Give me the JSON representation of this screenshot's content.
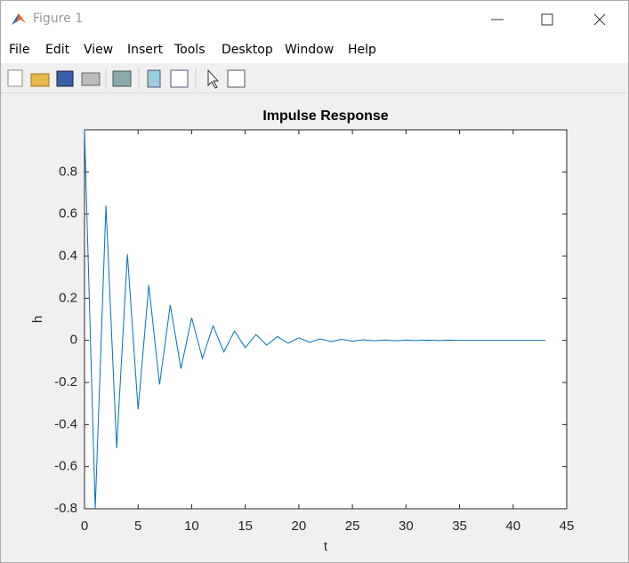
{
  "window": {
    "title": "Figure 1",
    "menu": [
      "File",
      "Edit",
      "View",
      "Insert",
      "Tools",
      "Desktop",
      "Window",
      "Help"
    ]
  },
  "chart_data": {
    "type": "line",
    "title": "Impulse Response",
    "xlabel": "t",
    "ylabel": "h",
    "x": [
      0,
      1,
      2,
      3,
      4,
      5,
      6,
      7,
      8,
      9,
      10,
      11,
      12,
      13,
      14,
      15,
      16,
      17,
      18,
      19,
      20,
      21,
      22,
      23,
      24,
      25,
      26,
      27,
      28,
      29,
      30,
      31,
      32,
      33,
      34,
      35,
      36,
      37,
      38,
      39,
      40,
      41,
      42,
      43
    ],
    "series": [
      {
        "color": "#0072bd",
        "values": [
          1,
          -0.8,
          0.64,
          -0.512,
          0.41,
          -0.328,
          0.262,
          -0.21,
          0.168,
          -0.134,
          0.107,
          -0.086,
          0.069,
          -0.055,
          0.044,
          -0.035,
          0.028,
          -0.023,
          0.018,
          -0.014,
          0.012,
          -0.009,
          0.007,
          -0.006,
          0.005,
          -0.004,
          0.003,
          -0.002,
          0.002,
          -0.002,
          0.001,
          -0.001,
          0.001,
          -0.001,
          0.001,
          0,
          0,
          0,
          0,
          0,
          0,
          0,
          0,
          0
        ]
      }
    ],
    "xlim": [
      0,
      45
    ],
    "xticks": [
      0,
      5,
      10,
      15,
      20,
      25,
      30,
      35,
      40,
      45
    ],
    "ylim": [
      -0.8,
      1
    ],
    "yticks": [
      -0.8,
      -0.6,
      -0.4,
      -0.2,
      0,
      0.2,
      0.4,
      0.6,
      0.8
    ],
    "grid": false
  }
}
